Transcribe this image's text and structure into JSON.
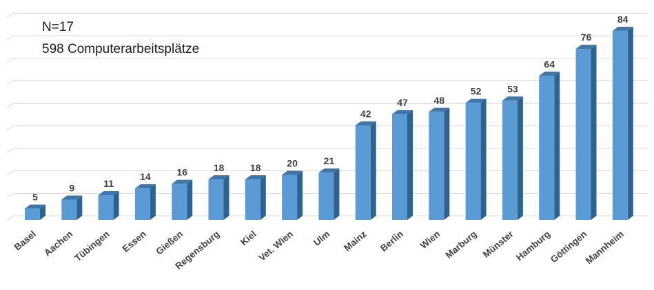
{
  "chart_data": {
    "type": "bar",
    "title": "",
    "xlabel": "",
    "ylabel": "",
    "annotations": [
      "N=17",
      "598 Computerarbeitsplätze"
    ],
    "categories": [
      "Basel",
      "Aachen",
      "Tübingen",
      "Essen",
      "Gießen",
      "Regensburg",
      "Kiel",
      "Vet. Wien",
      "Ulm",
      "Mainz",
      "Berlin",
      "Wien",
      "Marburg",
      "Münster",
      "Hamburg",
      "Göttingen",
      "Mannheim"
    ],
    "values": [
      5,
      9,
      11,
      14,
      16,
      18,
      18,
      20,
      21,
      42,
      47,
      48,
      52,
      53,
      64,
      76,
      84
    ],
    "ylim": [
      0,
      90
    ],
    "grid": true,
    "style": "3d-column",
    "colors": {
      "bar_front": "#5b9bd5",
      "bar_side": "#2e6291",
      "bar_top": "#3f77aa",
      "gridline": "#d9d9d9",
      "label": "#404040"
    }
  }
}
